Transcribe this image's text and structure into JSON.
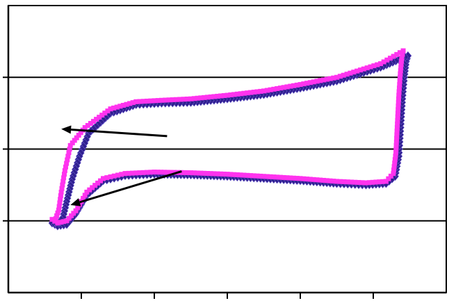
{
  "chart_data": {
    "type": "line",
    "title": "",
    "xlabel": "",
    "ylabel": "",
    "xlim": [
      0,
      12
    ],
    "ylim": [
      -2,
      2
    ],
    "grid": {
      "horizontal": true,
      "vertical": false
    },
    "x_ticks": [
      2,
      4,
      6,
      8,
      10
    ],
    "y_gridlines": [
      -1,
      0,
      1
    ],
    "series": [
      {
        "color": "#2f1f8f",
        "marker": "diamond",
        "points": [
          [
            1.2,
            -1.03
          ],
          [
            1.35,
            -1.07
          ],
          [
            1.6,
            -1.05
          ],
          [
            1.85,
            -0.9
          ],
          [
            2.15,
            -0.64
          ],
          [
            2.6,
            -0.44
          ],
          [
            3.2,
            -0.37
          ],
          [
            4.0,
            -0.35
          ],
          [
            5.0,
            -0.36
          ],
          [
            6.0,
            -0.38
          ],
          [
            7.0,
            -0.41
          ],
          [
            8.0,
            -0.44
          ],
          [
            9.0,
            -0.48
          ],
          [
            9.8,
            -0.5
          ],
          [
            10.35,
            -0.48
          ],
          [
            10.6,
            -0.38
          ],
          [
            10.7,
            -0.1
          ],
          [
            10.75,
            0.3
          ],
          [
            10.8,
            0.7
          ],
          [
            10.85,
            1.0
          ],
          [
            10.9,
            1.22
          ],
          [
            10.95,
            1.3
          ],
          [
            10.2,
            1.14
          ],
          [
            9.0,
            0.95
          ],
          [
            8.0,
            0.85
          ],
          [
            7.0,
            0.76
          ],
          [
            6.0,
            0.7
          ],
          [
            5.0,
            0.65
          ],
          [
            4.2,
            0.64
          ],
          [
            3.5,
            0.62
          ],
          [
            2.8,
            0.5
          ],
          [
            2.2,
            0.22
          ],
          [
            1.95,
            -0.1
          ],
          [
            1.75,
            -0.42
          ],
          [
            1.6,
            -0.73
          ],
          [
            1.5,
            -0.95
          ],
          [
            1.4,
            -1.02
          ],
          [
            1.2,
            -1.03
          ]
        ]
      },
      {
        "color": "#ff33ee",
        "marker": "square",
        "points": [
          [
            1.2,
            -0.98
          ],
          [
            1.35,
            -1.03
          ],
          [
            1.6,
            -1.0
          ],
          [
            1.85,
            -0.86
          ],
          [
            2.15,
            -0.6
          ],
          [
            2.6,
            -0.41
          ],
          [
            3.2,
            -0.34
          ],
          [
            4.0,
            -0.32
          ],
          [
            5.0,
            -0.33
          ],
          [
            6.0,
            -0.35
          ],
          [
            7.0,
            -0.38
          ],
          [
            8.0,
            -0.41
          ],
          [
            9.0,
            -0.45
          ],
          [
            9.8,
            -0.47
          ],
          [
            10.35,
            -0.45
          ],
          [
            10.55,
            -0.34
          ],
          [
            10.62,
            -0.05
          ],
          [
            10.66,
            0.35
          ],
          [
            10.7,
            0.75
          ],
          [
            10.74,
            1.05
          ],
          [
            10.78,
            1.27
          ],
          [
            10.82,
            1.37
          ],
          [
            10.2,
            1.19
          ],
          [
            9.0,
            1.0
          ],
          [
            8.0,
            0.9
          ],
          [
            7.0,
            0.81
          ],
          [
            6.0,
            0.75
          ],
          [
            5.0,
            0.7
          ],
          [
            4.2,
            0.68
          ],
          [
            3.5,
            0.66
          ],
          [
            2.8,
            0.56
          ],
          [
            2.1,
            0.3
          ],
          [
            1.7,
            0.05
          ],
          [
            1.55,
            -0.3
          ],
          [
            1.45,
            -0.6
          ],
          [
            1.38,
            -0.85
          ],
          [
            1.3,
            -0.97
          ],
          [
            1.2,
            -0.98
          ]
        ]
      }
    ],
    "arrows": [
      {
        "from": [
          4.35,
          0.18
        ],
        "to": [
          1.45,
          0.28
        ],
        "color": "#000000"
      },
      {
        "from": [
          4.75,
          -0.31
        ],
        "to": [
          1.7,
          -0.78
        ],
        "color": "#000000"
      }
    ]
  }
}
